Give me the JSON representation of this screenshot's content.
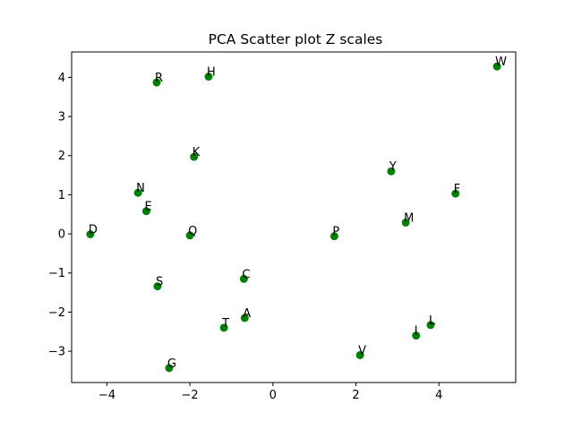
{
  "chart_data": {
    "type": "scatter",
    "title": "PCA Scatter plot Z scales",
    "xlabel": "",
    "ylabel": "",
    "xlim": [
      -4.85,
      5.85
    ],
    "ylim": [
      -3.8,
      4.65
    ],
    "xticks": [
      -4,
      -2,
      0,
      2,
      4
    ],
    "yticks": [
      -3,
      -2,
      -1,
      0,
      1,
      2,
      3,
      4
    ],
    "grid": false,
    "legend": "none",
    "marker_color": "#008000",
    "points": [
      {
        "label": "W",
        "x": 5.4,
        "y": 4.28
      },
      {
        "label": "H",
        "x": -1.55,
        "y": 4.02
      },
      {
        "label": "R",
        "x": -2.8,
        "y": 3.87
      },
      {
        "label": "K",
        "x": -1.9,
        "y": 1.97
      },
      {
        "label": "Y",
        "x": 2.85,
        "y": 1.6
      },
      {
        "label": "N",
        "x": -3.25,
        "y": 1.05
      },
      {
        "label": "F",
        "x": 4.4,
        "y": 1.03
      },
      {
        "label": "E",
        "x": -3.05,
        "y": 0.58
      },
      {
        "label": "M",
        "x": 3.2,
        "y": 0.29
      },
      {
        "label": "D",
        "x": -4.4,
        "y": -0.01
      },
      {
        "label": "Q",
        "x": -2.0,
        "y": -0.04
      },
      {
        "label": "P",
        "x": 1.48,
        "y": -0.06
      },
      {
        "label": "C",
        "x": -0.7,
        "y": -1.15
      },
      {
        "label": "S",
        "x": -2.78,
        "y": -1.34
      },
      {
        "label": "A",
        "x": -0.68,
        "y": -2.15
      },
      {
        "label": "T",
        "x": -1.18,
        "y": -2.4
      },
      {
        "label": "L",
        "x": 3.8,
        "y": -2.33
      },
      {
        "label": "I",
        "x": 3.45,
        "y": -2.6
      },
      {
        "label": "V",
        "x": 2.1,
        "y": -3.1
      },
      {
        "label": "G",
        "x": -2.5,
        "y": -3.43
      }
    ]
  }
}
